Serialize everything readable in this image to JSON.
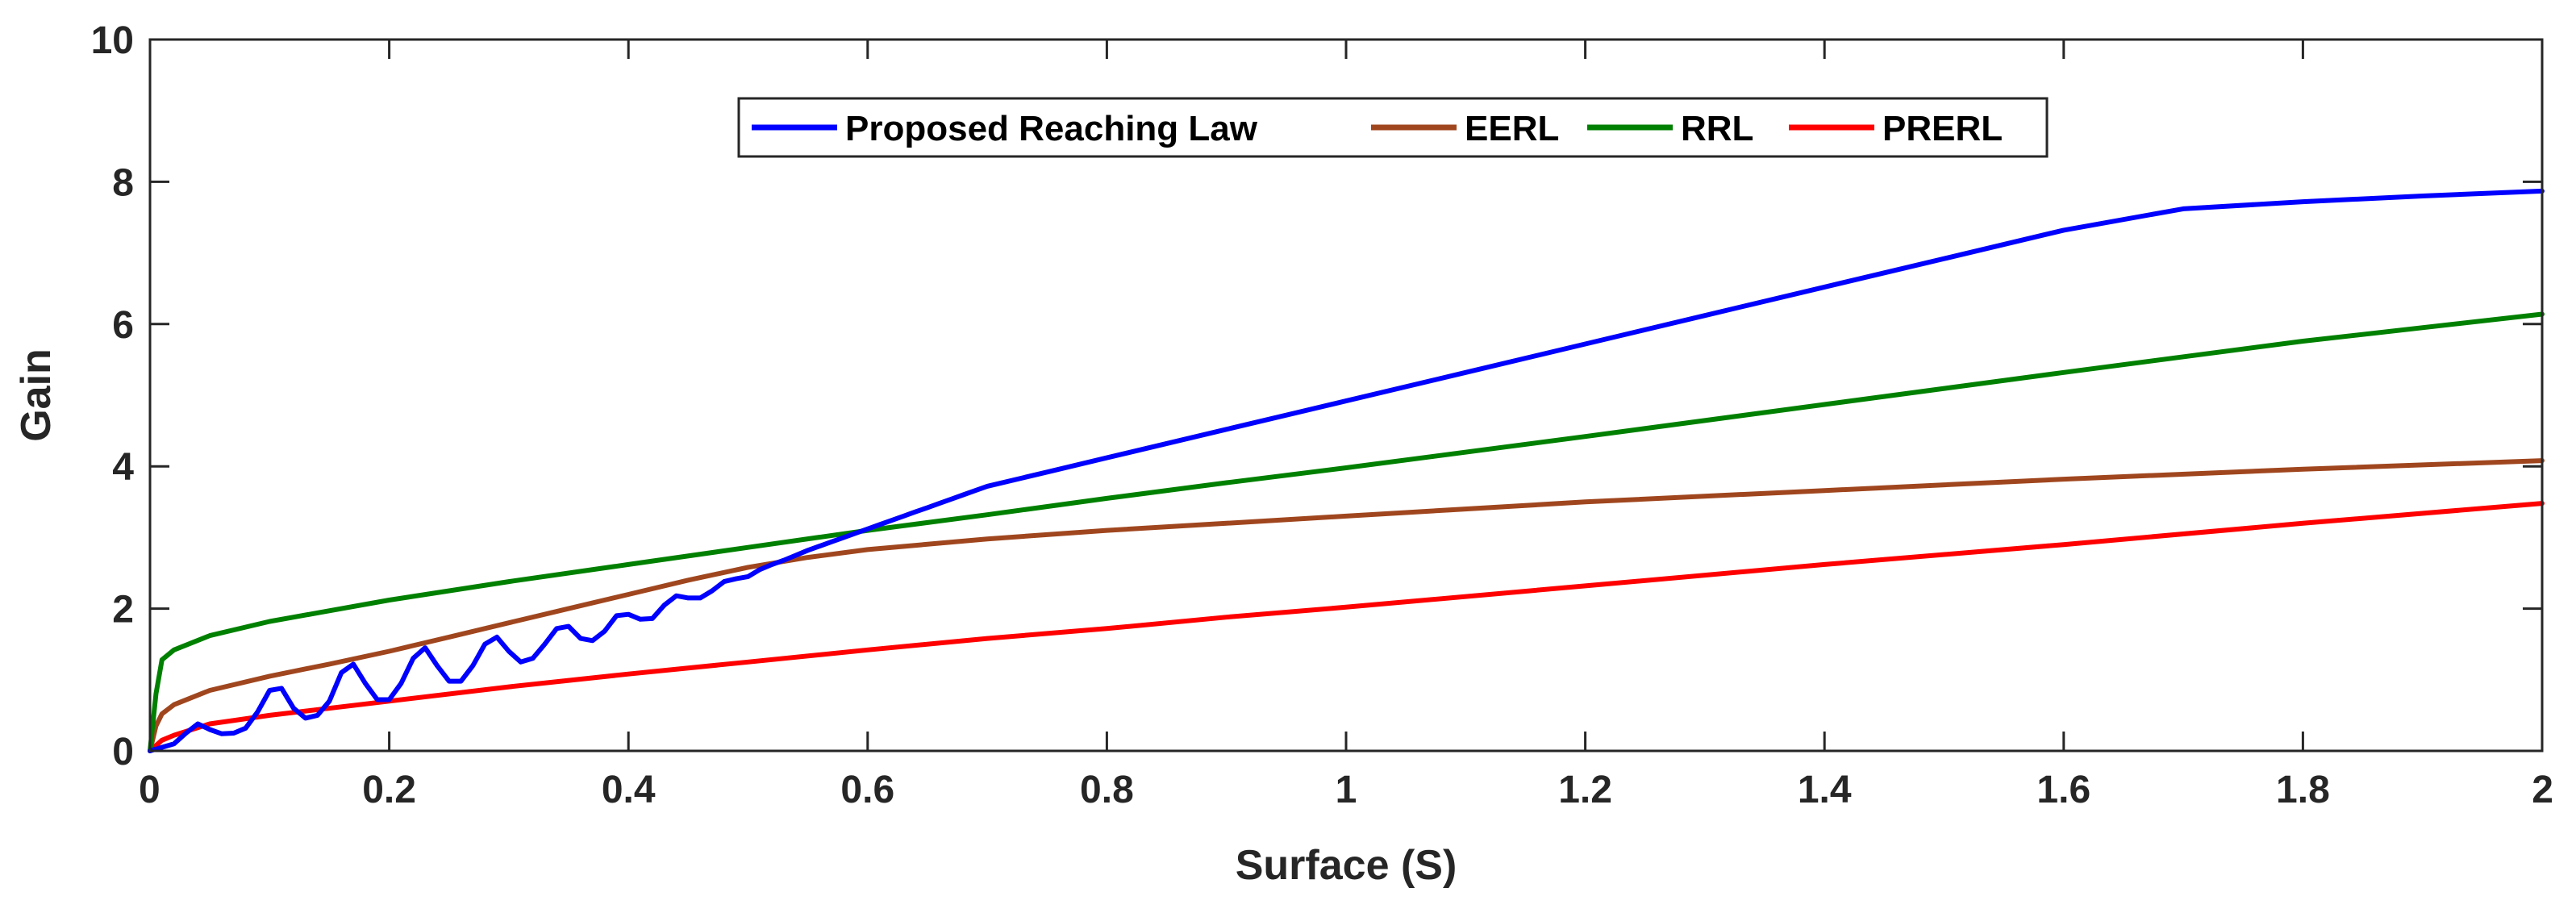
{
  "chart_data": {
    "type": "line",
    "title": "",
    "xlabel": "Surface (S)",
    "ylabel": "Gain",
    "xlim": [
      0,
      2
    ],
    "ylim": [
      0,
      10
    ],
    "xticks": [
      0,
      0.2,
      0.4,
      0.6,
      0.8,
      1,
      1.2,
      1.4,
      1.6,
      1.8,
      2
    ],
    "xtick_labels": [
      "0",
      "0.2",
      "0.4",
      "0.6",
      "0.8",
      "1",
      "1.2",
      "1.4",
      "1.6",
      "1.8",
      "2"
    ],
    "yticks": [
      0,
      2,
      4,
      6,
      8,
      10
    ],
    "ytick_labels": [
      "0",
      "2",
      "4",
      "6",
      "8",
      "10"
    ],
    "grid": false,
    "legend_position": "top-center",
    "series": [
      {
        "name": "Proposed Reaching Law",
        "color": "#0000ff",
        "x": [
          0,
          0.01,
          0.02,
          0.03,
          0.04,
          0.05,
          0.06,
          0.07,
          0.08,
          0.09,
          0.1,
          0.11,
          0.12,
          0.13,
          0.14,
          0.15,
          0.16,
          0.17,
          0.18,
          0.19,
          0.2,
          0.21,
          0.22,
          0.23,
          0.24,
          0.25,
          0.26,
          0.27,
          0.28,
          0.29,
          0.3,
          0.31,
          0.32,
          0.33,
          0.34,
          0.35,
          0.36,
          0.37,
          0.38,
          0.39,
          0.4,
          0.41,
          0.42,
          0.43,
          0.44,
          0.45,
          0.46,
          0.47,
          0.48,
          0.49,
          0.5,
          0.51,
          0.52,
          0.53,
          0.54,
          0.55,
          0.56,
          0.57,
          0.58,
          0.59,
          0.6,
          0.61,
          0.62,
          0.63,
          0.64,
          0.65,
          0.66,
          0.67,
          0.68,
          0.69,
          0.7,
          0.75,
          0.8,
          0.9,
          1.0,
          1.1,
          1.2,
          1.3,
          1.4,
          1.5,
          1.6,
          1.7,
          1.8,
          1.9,
          2.0
        ],
        "values": [
          0,
          0.05,
          0.1,
          0.25,
          0.38,
          0.3,
          0.24,
          0.25,
          0.32,
          0.55,
          0.85,
          0.88,
          0.6,
          0.46,
          0.5,
          0.7,
          1.1,
          1.22,
          0.95,
          0.72,
          0.72,
          0.95,
          1.3,
          1.45,
          1.2,
          0.98,
          0.98,
          1.2,
          1.5,
          1.6,
          1.4,
          1.25,
          1.3,
          1.5,
          1.72,
          1.75,
          1.58,
          1.55,
          1.68,
          1.9,
          1.92,
          1.85,
          1.86,
          2.05,
          2.18,
          2.15,
          2.15,
          2.25,
          2.38,
          2.42,
          2.45,
          2.55,
          2.62,
          2.68,
          2.75,
          2.82,
          2.88,
          2.94,
          3.0,
          3.06,
          3.12,
          3.18,
          3.24,
          3.3,
          3.36,
          3.42,
          3.48,
          3.54,
          3.6,
          3.66,
          3.72,
          3.92,
          4.12,
          4.52,
          4.92,
          5.32,
          5.72,
          6.12,
          6.52,
          6.92,
          7.32,
          7.62,
          7.72,
          7.8,
          7.87
        ]
      },
      {
        "name": "EERL",
        "color": "#a0461e",
        "x": [
          0,
          0.005,
          0.01,
          0.02,
          0.05,
          0.1,
          0.15,
          0.2,
          0.25,
          0.3,
          0.35,
          0.4,
          0.45,
          0.5,
          0.55,
          0.6,
          0.7,
          0.8,
          0.9,
          1.0,
          1.2,
          1.4,
          1.6,
          1.8,
          2.0
        ],
        "values": [
          0,
          0.35,
          0.52,
          0.65,
          0.85,
          1.05,
          1.22,
          1.4,
          1.6,
          1.8,
          2.0,
          2.2,
          2.4,
          2.58,
          2.72,
          2.83,
          2.98,
          3.1,
          3.2,
          3.3,
          3.5,
          3.66,
          3.82,
          3.96,
          4.08
        ]
      },
      {
        "name": "RRL",
        "color": "#008000",
        "x": [
          0,
          0.005,
          0.01,
          0.02,
          0.05,
          0.1,
          0.2,
          0.3,
          0.4,
          0.5,
          0.6,
          0.7,
          0.8,
          0.9,
          1.0,
          1.2,
          1.4,
          1.6,
          1.8,
          2.0
        ],
        "values": [
          0,
          0.8,
          1.28,
          1.42,
          1.62,
          1.82,
          2.12,
          2.38,
          2.62,
          2.86,
          3.1,
          3.32,
          3.55,
          3.77,
          3.98,
          4.42,
          4.87,
          5.32,
          5.76,
          6.14
        ]
      },
      {
        "name": "PRERL",
        "color": "#ff0000",
        "x": [
          0,
          0.01,
          0.02,
          0.05,
          0.1,
          0.2,
          0.3,
          0.4,
          0.5,
          0.6,
          0.7,
          0.8,
          0.9,
          1.0,
          1.2,
          1.4,
          1.6,
          1.8,
          2.0
        ],
        "values": [
          0,
          0.15,
          0.22,
          0.38,
          0.5,
          0.7,
          0.9,
          1.08,
          1.25,
          1.42,
          1.58,
          1.72,
          1.88,
          2.02,
          2.32,
          2.62,
          2.9,
          3.2,
          3.48
        ]
      }
    ]
  }
}
